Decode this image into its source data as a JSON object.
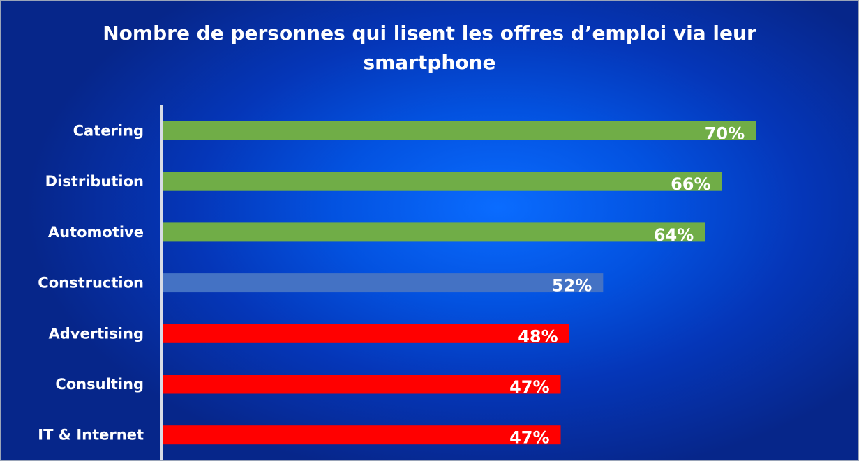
{
  "chart_data": {
    "type": "bar",
    "orientation": "horizontal",
    "title_lines": [
      "Nombre de personnes qui lisent les offres d’emploi via leur",
      "smartphone"
    ],
    "categories": [
      "Catering",
      "Distribution",
      "Automotive",
      "Construction",
      "Advertising",
      "Consulting",
      "IT & Internet"
    ],
    "values": [
      70,
      66,
      64,
      52,
      48,
      47,
      47
    ],
    "value_labels": [
      "70%",
      "66%",
      "64%",
      "52%",
      "48%",
      "47%",
      "47%"
    ],
    "colors": [
      "#70AD47",
      "#70AD47",
      "#70AD47",
      "#4472C4",
      "#FF0000",
      "#FF0000",
      "#FF0000"
    ],
    "xlim": [
      0,
      100
    ],
    "unit": "%",
    "grid": false,
    "legend": "none"
  }
}
